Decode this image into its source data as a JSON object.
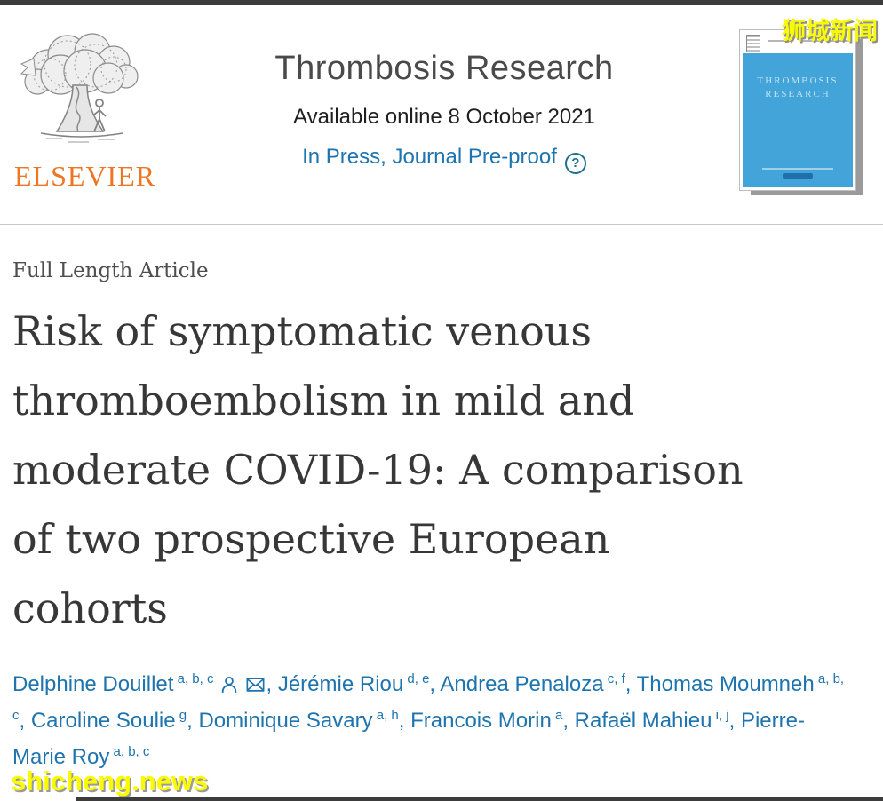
{
  "header": {
    "publisher": "ELSEVIER",
    "journal_title": "Thrombosis Research",
    "availability": "Available online 8 October 2021",
    "status": "In Press, Journal Pre-proof",
    "help_glyph": "?"
  },
  "cover": {
    "line1": "THROMBOSIS",
    "line2": "RESEARCH"
  },
  "watermarks": {
    "top_right": "狮城新闻",
    "bottom_left": "shicheng.news"
  },
  "article": {
    "type_label": "Full Length Article",
    "title": "Risk of symptomatic venous thromboembolism in mild and moderate COVID-19: A comparison of two prospective European cohorts",
    "title_lines": [
      "Risk of symptomatic venous",
      "thromboembolism in mild and",
      "moderate COVID-19: A comparison",
      "of two prospective European",
      "cohorts"
    ],
    "authors": [
      {
        "name": "Delphine Douillet",
        "affiliations": "a, b, c",
        "corresponding": true
      },
      {
        "name": "Jérémie Riou",
        "affiliations": "d, e"
      },
      {
        "name": "Andrea Penaloza",
        "affiliations": "c, f"
      },
      {
        "name": "Thomas Moumneh",
        "affiliations": "a, b, c"
      },
      {
        "name": "Caroline Soulie",
        "affiliations": "g"
      },
      {
        "name": "Dominique Savary",
        "affiliations": "a, h"
      },
      {
        "name": "Francois Morin",
        "affiliations": "a"
      },
      {
        "name": "Rafaël Mahieu",
        "affiliations": "i, j"
      },
      {
        "name": "Pierre-Marie Roy",
        "affiliations": "a, b, c"
      }
    ]
  },
  "colors": {
    "accent_blue": "#1e74ae",
    "help_teal": "#1a7090",
    "elsevier_orange": "#ee7623",
    "cover_blue": "#42a4d8",
    "watermark_yellow": "#fbfb00",
    "bar_dark": "#3c3c3c",
    "title_gray": "#373737"
  }
}
